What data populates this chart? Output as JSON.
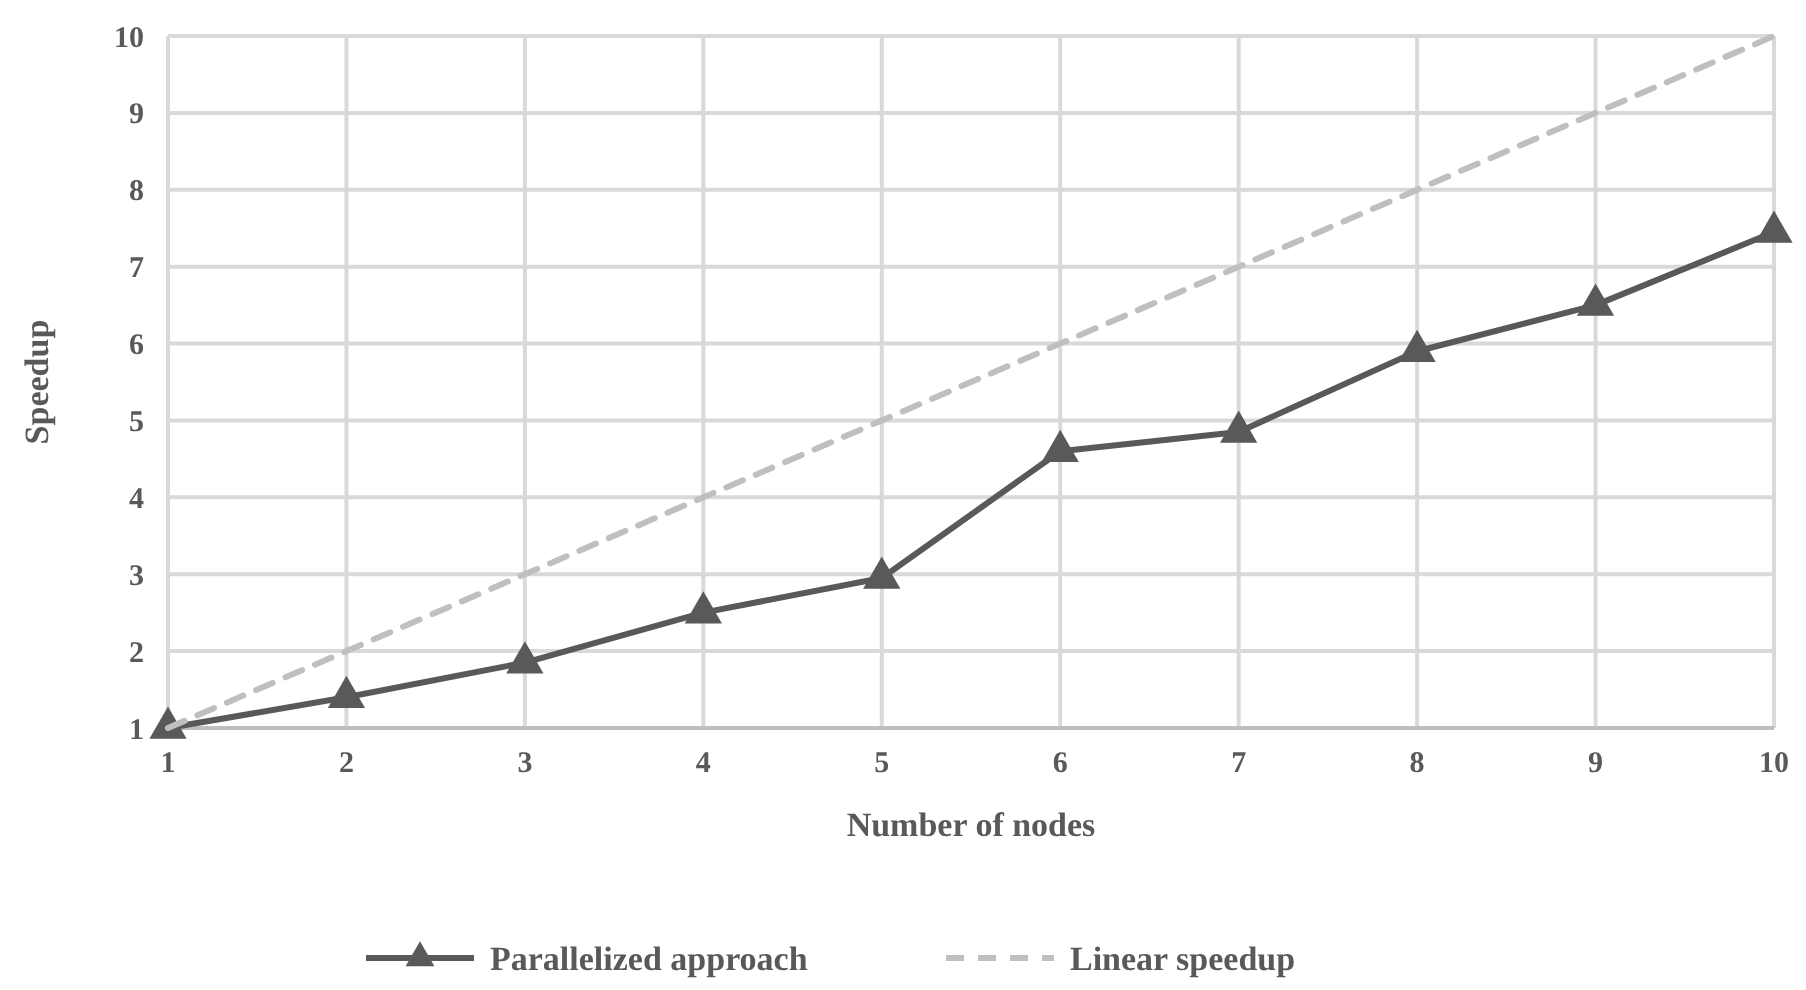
{
  "chart_data": {
    "type": "line",
    "xlabel": "Number of nodes",
    "ylabel": "Speedup",
    "x": [
      1,
      2,
      3,
      4,
      5,
      6,
      7,
      8,
      9,
      10
    ],
    "xlim": [
      1,
      10
    ],
    "xticks": [
      1,
      2,
      3,
      4,
      5,
      6,
      7,
      8,
      9,
      10
    ],
    "ylim": [
      1,
      10
    ],
    "yticks": [
      1,
      2,
      3,
      4,
      5,
      6,
      7,
      8,
      9,
      10
    ],
    "grid": true,
    "legend": "bottom",
    "series": [
      {
        "name": "Parallelized approach",
        "color": "#595959",
        "marker": "triangle",
        "line_style": "solid",
        "values": [
          1.0,
          1.4,
          1.85,
          2.5,
          2.95,
          4.6,
          4.85,
          5.9,
          6.5,
          7.45
        ]
      },
      {
        "name": "Linear speedup",
        "color": "#bfbfbf",
        "marker": "none",
        "line_style": "dashed",
        "values": [
          1,
          2,
          3,
          4,
          5,
          6,
          7,
          8,
          9,
          10
        ]
      }
    ]
  }
}
